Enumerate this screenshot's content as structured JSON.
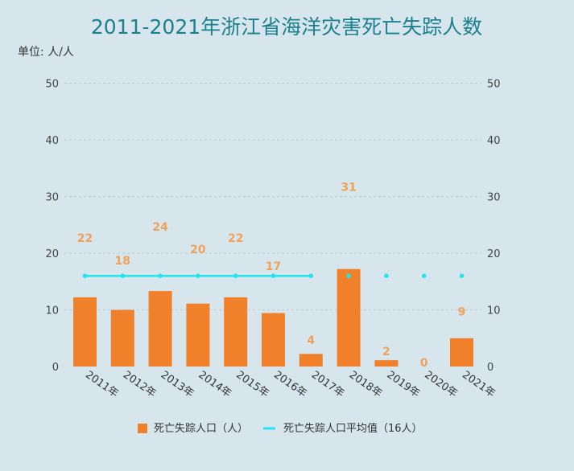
{
  "chart_data": {
    "type": "bar",
    "title": "2011-2021年浙江省海洋灾害死亡失踪人数",
    "unit_label": "单位: 人/人",
    "categories": [
      "2011年",
      "2012年",
      "2013年",
      "2014年",
      "2015年",
      "2016年",
      "2017年",
      "2018年",
      "2019年",
      "2020年",
      "2021年"
    ],
    "series": [
      {
        "name": "死亡失踪人口（人）",
        "type": "bar",
        "color": "#f0812a",
        "values": [
          22,
          18,
          24,
          20,
          22,
          17,
          4,
          31,
          2,
          0,
          9
        ]
      },
      {
        "name": "死亡失踪人口平均值（16人）",
        "type": "line",
        "color": "#22e5ee",
        "values": [
          16,
          16,
          16,
          16,
          16,
          16,
          16,
          16,
          16,
          16,
          16
        ]
      }
    ],
    "left_axis": {
      "ticks": [
        0,
        10,
        20,
        30,
        40,
        50
      ]
    },
    "right_axis": {
      "ticks": [
        0,
        10,
        20,
        30,
        40,
        50
      ]
    },
    "grid": true,
    "legend_position": "bottom"
  }
}
